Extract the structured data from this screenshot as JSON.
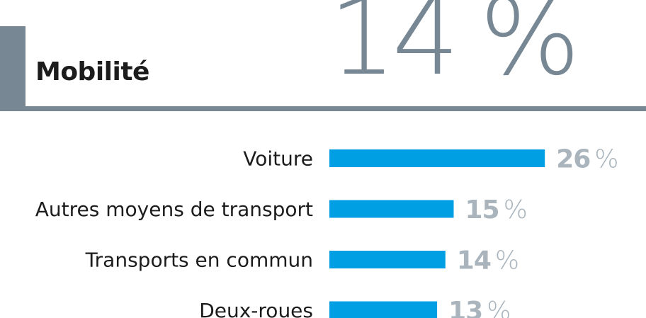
{
  "header": {
    "title": "Mobilité",
    "headline_value": "14",
    "headline_unit": "%"
  },
  "chart_data": {
    "type": "bar",
    "orientation": "horizontal",
    "categories": [
      "Voiture",
      "Autres moyens de transport",
      "Transports en commun",
      "Deux-roues"
    ],
    "values": [
      26,
      15,
      14,
      13
    ],
    "value_labels": [
      "26",
      "15",
      "14",
      "13"
    ],
    "unit": "%",
    "title": "",
    "xlabel": "",
    "ylabel": "",
    "grid": false,
    "legend": "none"
  },
  "colors": {
    "bar": "#009fe3",
    "accent": "#778894",
    "value_text": "#aab4bc",
    "label_text": "#1c1c1c"
  }
}
